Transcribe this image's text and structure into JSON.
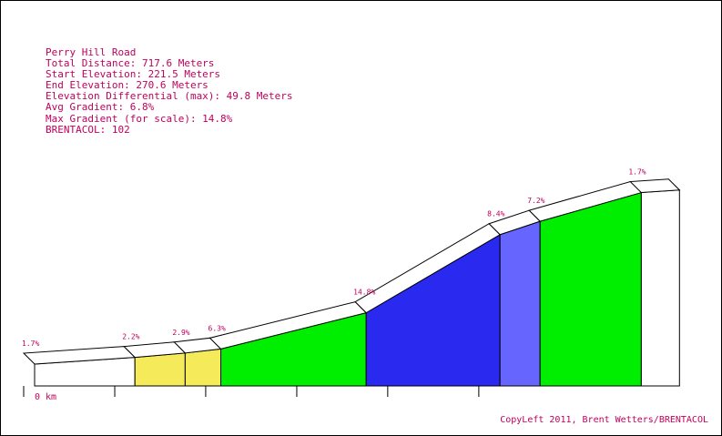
{
  "info": {
    "road": "Perry Hill Road",
    "total_distance": "Total Distance: 717.6 Meters",
    "start_elevation": "Start Elevation: 221.5 Meters",
    "end_elevation": "End Elevation: 270.6 Meters",
    "elevation_diff": "Elevation Differential (max): 49.8 Meters",
    "avg_gradient": "Avg Gradient: 6.8%",
    "max_gradient": "Max Gradient (for scale): 14.8%",
    "brentacol": "BRENTACOL: 102"
  },
  "x_axis_label": "0 km",
  "copyright": "CopyLeft 2011, Brent Wetters/BRENTACOL",
  "chart_data": {
    "type": "area",
    "title": "Perry Hill Road",
    "xlabel": "",
    "ylabel": "",
    "total_distance_m": 717.6,
    "start_elevation_m": 221.5,
    "end_elevation_m": 270.6,
    "segments": [
      {
        "label": "1.7%",
        "gradient": 1.7,
        "start_m": 0,
        "end_m": 79.1,
        "color": "#ffffff"
      },
      {
        "label": "2.2%",
        "gradient": 2.2,
        "start_m": 79.1,
        "end_m": 118.7,
        "color": "#f5ea5a"
      },
      {
        "label": "2.9%",
        "gradient": 2.9,
        "start_m": 118.7,
        "end_m": 146.8,
        "color": "#f5ea5a"
      },
      {
        "label": "6.3%",
        "gradient": 6.3,
        "start_m": 146.8,
        "end_m": 261.4,
        "color": "#00ee00"
      },
      {
        "label": "14.8%",
        "gradient": 14.8,
        "start_m": 261.4,
        "end_m": 366.9,
        "color": "#2929f0"
      },
      {
        "label": "8.4%",
        "gradient": 8.4,
        "start_m": 366.9,
        "end_m": 398.5,
        "color": "#6666ff"
      },
      {
        "label": "7.2%",
        "gradient": 7.2,
        "start_m": 398.5,
        "end_m": 478.3,
        "color": "#00ee00"
      },
      {
        "label": "1.7%",
        "gradient": 1.7,
        "start_m": 478.3,
        "end_m": 508.4,
        "color": "#ffffff"
      }
    ],
    "x_ticks_m": [
      0,
      71.8,
      143.5,
      215.3,
      287.0,
      358.8
    ]
  }
}
